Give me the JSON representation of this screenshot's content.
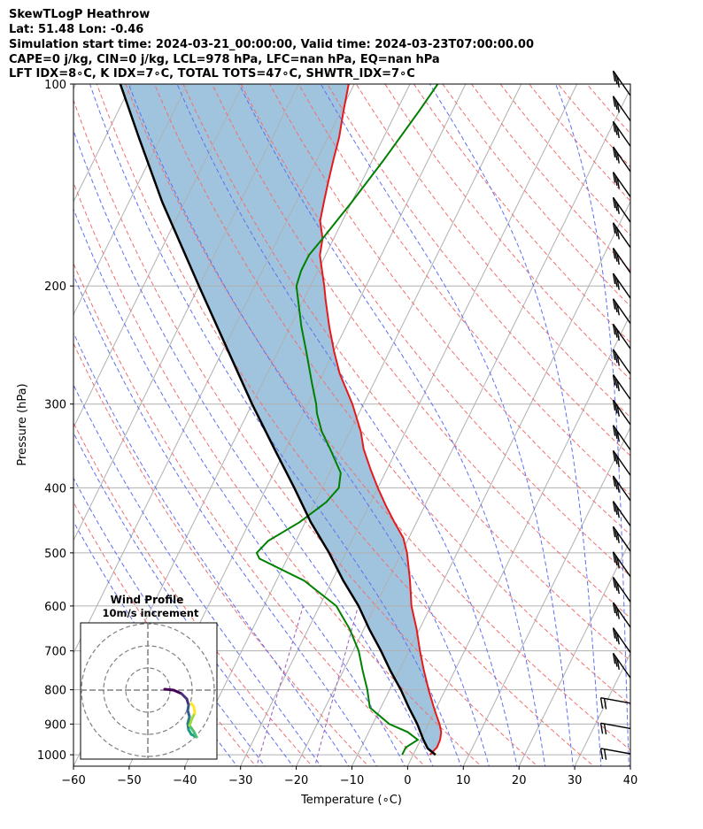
{
  "header": {
    "line1": "SkewTLogP Heathrow",
    "line2": "Lat: 51.48   Lon: -0.46",
    "line3": "Simulation start time: 2024-03-21_00:00:00, Valid time: 2024-03-23T07:00:00.00",
    "line4": "CAPE=0 j/kg, CIN=0 j/kg, LCL=978 hPa, LFC=nan hPa, EQ=nan hPa",
    "line5": "LFT IDX=8∘C, K IDX=7∘C, TOTAL TOTS=47∘C, SHWTR_IDX=7∘C"
  },
  "chart_data": {
    "type": "line",
    "title": "SkewTLogP Heathrow",
    "xlabel": "Temperature (∘C)",
    "ylabel": "Pressure (hPa)",
    "xlim": [
      -60,
      40
    ],
    "ylim": [
      1040,
      100
    ],
    "y_scale": "log",
    "grid": true,
    "x_ticks": [
      "−60",
      "−50",
      "−40",
      "−30",
      "−20",
      "−10",
      "0",
      "10",
      "20",
      "30",
      "40"
    ],
    "x_tick_values": [
      -60,
      -50,
      -40,
      -30,
      -20,
      -10,
      0,
      10,
      20,
      30,
      40
    ],
    "y_ticks": [
      "1000",
      "900",
      "800",
      "700",
      "600",
      "500",
      "400",
      "300",
      "200",
      "100"
    ],
    "y_tick_values": [
      1000,
      900,
      800,
      700,
      600,
      500,
      400,
      300,
      200,
      100
    ],
    "colors": {
      "temperature": "#e41a1c",
      "dewpoint": "#008000",
      "parcel": "#000000",
      "shade": "#a0c4de",
      "dry_adiabats": "#f07070",
      "moist_adiabats": "#6070f0",
      "mixing_ratio": "#9b59b6",
      "isotherms": "#b0b0b0"
    },
    "series": [
      {
        "name": "temperature",
        "points": [
          [
            1000,
            3
          ],
          [
            975,
            3.6
          ],
          [
            950,
            3.5
          ],
          [
            925,
            3
          ],
          [
            900,
            2
          ],
          [
            870,
            0.5
          ],
          [
            850,
            -0.5
          ],
          [
            800,
            -3
          ],
          [
            750,
            -5.5
          ],
          [
            700,
            -8
          ],
          [
            650,
            -10.5
          ],
          [
            600,
            -13.5
          ],
          [
            550,
            -16
          ],
          [
            500,
            -19
          ],
          [
            475,
            -21
          ],
          [
            450,
            -24
          ],
          [
            425,
            -27
          ],
          [
            400,
            -30
          ],
          [
            375,
            -33
          ],
          [
            350,
            -36
          ],
          [
            330,
            -38
          ],
          [
            300,
            -42
          ],
          [
            270,
            -47
          ],
          [
            250,
            -50
          ],
          [
            230,
            -53
          ],
          [
            210,
            -56
          ],
          [
            200,
            -57.5
          ],
          [
            180,
            -61
          ],
          [
            170,
            -62
          ],
          [
            160,
            -64
          ],
          [
            150,
            -65
          ],
          [
            140,
            -66
          ],
          [
            130,
            -67
          ],
          [
            120,
            -68
          ],
          [
            110,
            -69.5
          ],
          [
            100,
            -71
          ]
        ]
      },
      {
        "name": "dewpoint",
        "points": [
          [
            1000,
            -2
          ],
          [
            975,
            -2
          ],
          [
            950,
            -0.5
          ],
          [
            925,
            -3
          ],
          [
            900,
            -7
          ],
          [
            870,
            -10
          ],
          [
            850,
            -12
          ],
          [
            800,
            -14
          ],
          [
            750,
            -16.5
          ],
          [
            700,
            -19
          ],
          [
            650,
            -22.5
          ],
          [
            600,
            -27
          ],
          [
            550,
            -35
          ],
          [
            510,
            -45
          ],
          [
            500,
            -46
          ],
          [
            480,
            -45
          ],
          [
            450,
            -41
          ],
          [
            420,
            -38
          ],
          [
            400,
            -37
          ],
          [
            380,
            -38
          ],
          [
            350,
            -42
          ],
          [
            330,
            -45
          ],
          [
            310,
            -47.5
          ],
          [
            300,
            -48.5
          ],
          [
            280,
            -51
          ],
          [
            250,
            -55
          ],
          [
            230,
            -58
          ],
          [
            200,
            -62.5
          ],
          [
            190,
            -63
          ],
          [
            180,
            -63
          ],
          [
            170,
            -62
          ],
          [
            150,
            -60
          ],
          [
            130,
            -58
          ],
          [
            110,
            -56
          ],
          [
            100,
            -55
          ]
        ]
      },
      {
        "name": "parcel",
        "points": [
          [
            1000,
            4
          ],
          [
            978,
            2
          ],
          [
            950,
            0.5
          ],
          [
            900,
            -2
          ],
          [
            850,
            -5
          ],
          [
            800,
            -8
          ],
          [
            750,
            -11.5
          ],
          [
            700,
            -15
          ],
          [
            650,
            -19
          ],
          [
            600,
            -23
          ],
          [
            550,
            -28
          ],
          [
            500,
            -33
          ],
          [
            450,
            -39
          ],
          [
            400,
            -45
          ],
          [
            350,
            -52
          ],
          [
            300,
            -60
          ],
          [
            250,
            -69
          ],
          [
            200,
            -80
          ],
          [
            150,
            -94
          ],
          [
            120,
            -104
          ],
          [
            100,
            -112
          ]
        ]
      }
    ],
    "wind_barbs_count": 27,
    "inset": {
      "title": "Wind Profile",
      "subtitle": "10m/s increment"
    }
  }
}
